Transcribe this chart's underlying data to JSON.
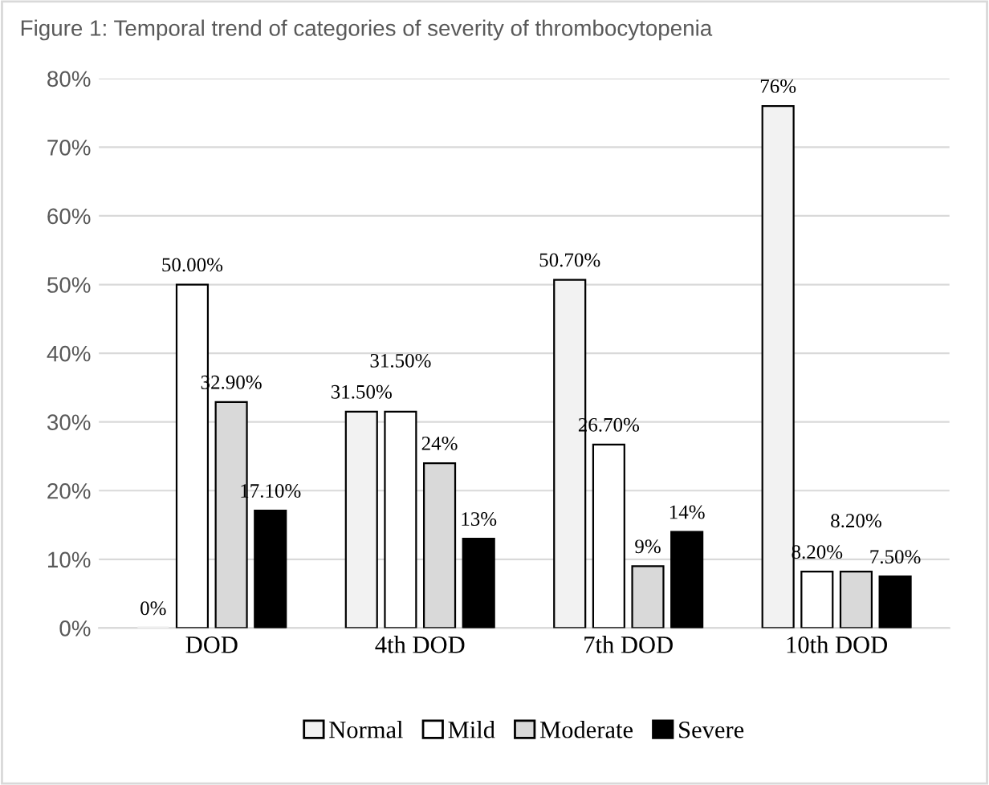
{
  "chart_data": {
    "type": "bar",
    "title": "Figure 1: Temporal trend of categories of severity of thrombocytopenia",
    "categories": [
      "DOD",
      "4th DOD",
      "7th DOD",
      "10th DOD"
    ],
    "series": [
      {
        "name": "Normal",
        "color": "#f2f2f2",
        "values": [
          0,
          31.5,
          50.7,
          76
        ],
        "value_labels": [
          "0%",
          "31.50%",
          "50.70%",
          "76%"
        ]
      },
      {
        "name": "Mild",
        "color": "#ffffff",
        "values": [
          50,
          31.5,
          26.7,
          8.2
        ],
        "value_labels": [
          "50.00%",
          "31.50%",
          "26.70%",
          "8.20%"
        ]
      },
      {
        "name": "Moderate",
        "color": "#d9d9d9",
        "values": [
          32.9,
          24,
          9,
          8.2
        ],
        "value_labels": [
          "32.90%",
          "24%",
          "9%",
          "8.20%"
        ]
      },
      {
        "name": "Severe",
        "color": "#000000",
        "values": [
          17.1,
          13,
          14,
          7.5
        ],
        "value_labels": [
          "17.10%",
          "13%",
          "14%",
          "7.50%"
        ]
      }
    ],
    "ylim": [
      0,
      80
    ],
    "yticks": [
      {
        "value": 0,
        "label": "0%"
      },
      {
        "value": 10,
        "label": "10%"
      },
      {
        "value": 20,
        "label": "20%"
      },
      {
        "value": 30,
        "label": "30%"
      },
      {
        "value": 40,
        "label": "40%"
      },
      {
        "value": 50,
        "label": "50%"
      },
      {
        "value": 60,
        "label": "60%"
      },
      {
        "value": 70,
        "label": "70%"
      },
      {
        "value": 80,
        "label": "80%"
      }
    ],
    "grid": "y",
    "legend": "bottom"
  }
}
